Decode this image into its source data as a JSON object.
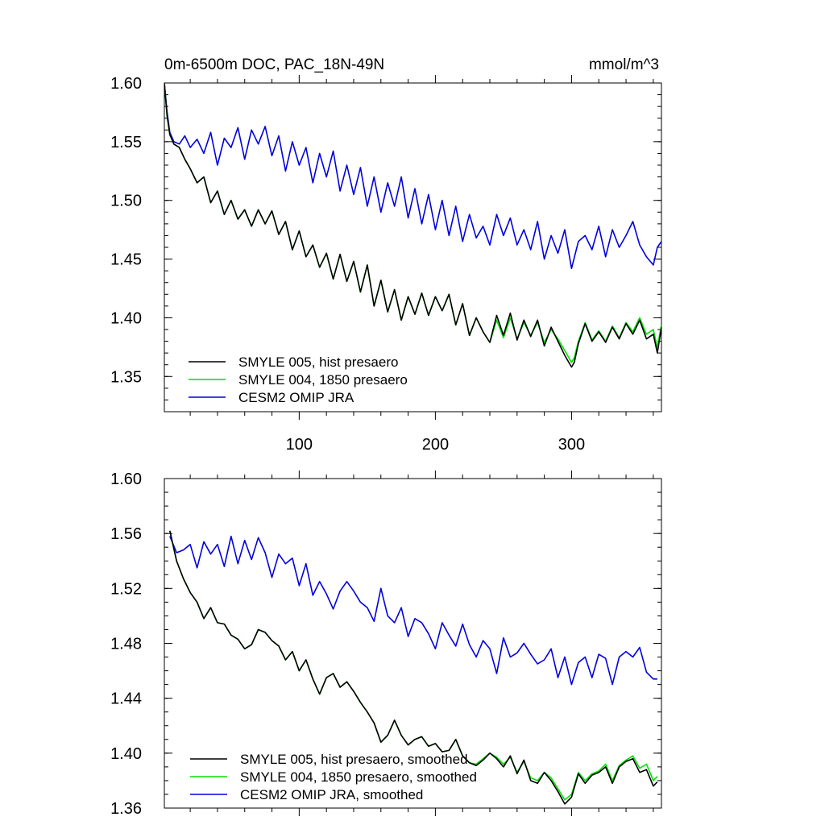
{
  "chart_data": [
    {
      "type": "line",
      "title": "0m-6500m DOC, PAC_18N-49N",
      "units": "mmol/m^3",
      "xlabel": "",
      "ylabel": "",
      "xlim": [
        1,
        366
      ],
      "ylim": [
        1.32,
        1.6
      ],
      "yticks": [
        "1.60",
        "1.55",
        "1.50",
        "1.45",
        "1.40",
        "1.35"
      ],
      "xticks": [
        "100",
        "200",
        "300"
      ],
      "legend_position": "bottom-left",
      "series": [
        {
          "name": "SMYLE 005, hist presaero",
          "color": "#000000",
          "x": [
            1,
            3,
            5,
            8,
            12,
            16,
            20,
            25,
            30,
            35,
            40,
            45,
            50,
            55,
            60,
            65,
            70,
            75,
            80,
            85,
            90,
            95,
            100,
            105,
            110,
            115,
            120,
            125,
            130,
            135,
            140,
            145,
            150,
            155,
            160,
            165,
            170,
            175,
            180,
            185,
            190,
            195,
            200,
            205,
            210,
            215,
            220,
            225,
            230,
            235,
            240,
            245,
            250,
            255,
            260,
            265,
            270,
            275,
            280,
            285,
            290,
            295,
            300,
            302,
            305,
            310,
            315,
            320,
            325,
            330,
            335,
            340,
            345,
            350,
            355,
            360,
            363,
            366
          ],
          "values": [
            1.6,
            1.572,
            1.556,
            1.548,
            1.545,
            1.535,
            1.527,
            1.515,
            1.52,
            1.498,
            1.508,
            1.488,
            1.5,
            1.484,
            1.492,
            1.478,
            1.492,
            1.48,
            1.491,
            1.471,
            1.482,
            1.458,
            1.474,
            1.452,
            1.462,
            1.443,
            1.455,
            1.433,
            1.454,
            1.431,
            1.448,
            1.422,
            1.445,
            1.41,
            1.432,
            1.405,
            1.424,
            1.398,
            1.418,
            1.403,
            1.421,
            1.402,
            1.418,
            1.406,
            1.42,
            1.394,
            1.412,
            1.385,
            1.4,
            1.388,
            1.379,
            1.402,
            1.385,
            1.404,
            1.381,
            1.398,
            1.384,
            1.398,
            1.376,
            1.392,
            1.38,
            1.368,
            1.358,
            1.362,
            1.378,
            1.395,
            1.38,
            1.388,
            1.379,
            1.392,
            1.382,
            1.395,
            1.386,
            1.398,
            1.382,
            1.386,
            1.37,
            1.392
          ]
        },
        {
          "name": "SMYLE 004, 1850 presaero",
          "color": "#00e000",
          "x": [
            1,
            3,
            5,
            8,
            12,
            16,
            20,
            25,
            30,
            35,
            40,
            45,
            50,
            55,
            60,
            65,
            70,
            75,
            80,
            85,
            90,
            95,
            100,
            105,
            110,
            115,
            120,
            125,
            130,
            135,
            140,
            145,
            150,
            155,
            160,
            165,
            170,
            175,
            180,
            185,
            190,
            195,
            200,
            205,
            210,
            215,
            220,
            225,
            230,
            235,
            240,
            245,
            250,
            255,
            260,
            265,
            270,
            275,
            280,
            285,
            290,
            295,
            300,
            302,
            305,
            310,
            315,
            320,
            325,
            330,
            335,
            340,
            345,
            350,
            355,
            360,
            363,
            366
          ],
          "values": [
            1.6,
            1.572,
            1.556,
            1.548,
            1.545,
            1.535,
            1.527,
            1.515,
            1.52,
            1.498,
            1.508,
            1.488,
            1.5,
            1.484,
            1.492,
            1.478,
            1.492,
            1.48,
            1.491,
            1.471,
            1.482,
            1.458,
            1.474,
            1.452,
            1.462,
            1.443,
            1.455,
            1.433,
            1.454,
            1.431,
            1.448,
            1.422,
            1.445,
            1.41,
            1.432,
            1.405,
            1.424,
            1.398,
            1.418,
            1.403,
            1.421,
            1.402,
            1.418,
            1.406,
            1.42,
            1.394,
            1.412,
            1.385,
            1.4,
            1.388,
            1.379,
            1.398,
            1.383,
            1.4,
            1.382,
            1.396,
            1.385,
            1.396,
            1.379,
            1.39,
            1.382,
            1.372,
            1.362,
            1.366,
            1.38,
            1.396,
            1.381,
            1.389,
            1.38,
            1.393,
            1.383,
            1.396,
            1.388,
            1.4,
            1.386,
            1.39,
            1.375,
            1.394
          ]
        },
        {
          "name": "CESM2 OMIP JRA",
          "color": "#0000dd",
          "x": [
            1,
            3,
            5,
            8,
            12,
            16,
            20,
            25,
            30,
            35,
            40,
            45,
            50,
            55,
            60,
            65,
            70,
            75,
            80,
            85,
            90,
            95,
            100,
            105,
            110,
            115,
            120,
            125,
            130,
            135,
            140,
            145,
            150,
            155,
            160,
            165,
            170,
            175,
            180,
            185,
            190,
            195,
            200,
            205,
            210,
            215,
            220,
            225,
            230,
            235,
            240,
            245,
            250,
            255,
            260,
            265,
            270,
            275,
            280,
            285,
            290,
            295,
            300,
            305,
            310,
            315,
            320,
            325,
            330,
            335,
            340,
            345,
            350,
            355,
            360,
            363,
            366
          ],
          "values": [
            1.6,
            1.575,
            1.558,
            1.55,
            1.548,
            1.555,
            1.545,
            1.552,
            1.54,
            1.558,
            1.53,
            1.553,
            1.545,
            1.562,
            1.535,
            1.56,
            1.548,
            1.563,
            1.538,
            1.555,
            1.525,
            1.55,
            1.53,
            1.545,
            1.515,
            1.54,
            1.52,
            1.542,
            1.508,
            1.53,
            1.505,
            1.528,
            1.495,
            1.52,
            1.49,
            1.515,
            1.495,
            1.52,
            1.485,
            1.51,
            1.48,
            1.505,
            1.475,
            1.5,
            1.47,
            1.495,
            1.465,
            1.488,
            1.468,
            1.478,
            1.462,
            1.488,
            1.47,
            1.485,
            1.462,
            1.475,
            1.458,
            1.482,
            1.45,
            1.47,
            1.455,
            1.475,
            1.442,
            1.465,
            1.47,
            1.458,
            1.478,
            1.452,
            1.475,
            1.46,
            1.47,
            1.482,
            1.462,
            1.452,
            1.445,
            1.46,
            1.465
          ]
        }
      ]
    },
    {
      "type": "line",
      "title": "",
      "xlabel": "",
      "ylabel": "",
      "xlim": [
        1,
        366
      ],
      "ylim": [
        1.36,
        1.6
      ],
      "yticks": [
        "1.60",
        "1.56",
        "1.52",
        "1.48",
        "1.44",
        "1.40",
        "1.36"
      ],
      "legend_position": "bottom-left",
      "series": [
        {
          "name": "SMYLE 005, hist presaero, smoothed",
          "color": "#000000",
          "x": [
            5,
            10,
            15,
            20,
            25,
            30,
            35,
            40,
            45,
            50,
            55,
            60,
            65,
            70,
            75,
            80,
            85,
            90,
            95,
            100,
            105,
            110,
            115,
            120,
            125,
            130,
            135,
            140,
            145,
            150,
            155,
            160,
            165,
            170,
            175,
            180,
            185,
            190,
            195,
            200,
            205,
            210,
            215,
            220,
            225,
            230,
            235,
            240,
            245,
            250,
            255,
            260,
            265,
            270,
            275,
            280,
            285,
            290,
            295,
            300,
            305,
            310,
            315,
            320,
            325,
            330,
            335,
            340,
            345,
            350,
            355,
            360,
            363
          ],
          "values": [
            1.562,
            1.54,
            1.527,
            1.517,
            1.51,
            1.498,
            1.506,
            1.495,
            1.494,
            1.486,
            1.483,
            1.476,
            1.479,
            1.49,
            1.488,
            1.482,
            1.478,
            1.468,
            1.474,
            1.46,
            1.468,
            1.454,
            1.443,
            1.455,
            1.458,
            1.448,
            1.452,
            1.445,
            1.437,
            1.43,
            1.422,
            1.408,
            1.413,
            1.424,
            1.413,
            1.406,
            1.41,
            1.412,
            1.405,
            1.407,
            1.401,
            1.402,
            1.41,
            1.398,
            1.393,
            1.391,
            1.395,
            1.4,
            1.396,
            1.39,
            1.398,
            1.385,
            1.395,
            1.38,
            1.378,
            1.386,
            1.38,
            1.372,
            1.363,
            1.368,
            1.385,
            1.378,
            1.384,
            1.386,
            1.39,
            1.378,
            1.39,
            1.394,
            1.396,
            1.386,
            1.388,
            1.376,
            1.379
          ]
        },
        {
          "name": "SMYLE 004, 1850 presaero, smoothed",
          "color": "#00e000",
          "x": [
            5,
            10,
            15,
            20,
            25,
            30,
            35,
            40,
            45,
            50,
            55,
            60,
            65,
            70,
            75,
            80,
            85,
            90,
            95,
            100,
            105,
            110,
            115,
            120,
            125,
            130,
            135,
            140,
            145,
            150,
            155,
            160,
            165,
            170,
            175,
            180,
            185,
            190,
            195,
            200,
            205,
            210,
            215,
            220,
            225,
            230,
            235,
            240,
            245,
            250,
            255,
            260,
            265,
            270,
            275,
            280,
            285,
            290,
            295,
            300,
            305,
            310,
            315,
            320,
            325,
            330,
            335,
            340,
            345,
            350,
            355,
            360,
            363
          ],
          "values": [
            1.562,
            1.54,
            1.527,
            1.517,
            1.51,
            1.498,
            1.506,
            1.495,
            1.494,
            1.486,
            1.483,
            1.476,
            1.479,
            1.49,
            1.488,
            1.482,
            1.478,
            1.468,
            1.474,
            1.46,
            1.468,
            1.454,
            1.443,
            1.455,
            1.458,
            1.448,
            1.452,
            1.445,
            1.437,
            1.43,
            1.422,
            1.408,
            1.413,
            1.424,
            1.413,
            1.406,
            1.41,
            1.412,
            1.405,
            1.407,
            1.401,
            1.402,
            1.41,
            1.398,
            1.393,
            1.392,
            1.396,
            1.4,
            1.397,
            1.392,
            1.397,
            1.386,
            1.394,
            1.382,
            1.38,
            1.386,
            1.382,
            1.374,
            1.366,
            1.37,
            1.386,
            1.38,
            1.385,
            1.387,
            1.392,
            1.38,
            1.391,
            1.395,
            1.398,
            1.389,
            1.392,
            1.38,
            1.383
          ]
        },
        {
          "name": "CESM2 OMIP JRA, smoothed",
          "color": "#0000dd",
          "x": [
            5,
            10,
            15,
            20,
            25,
            30,
            35,
            40,
            45,
            50,
            55,
            60,
            65,
            70,
            75,
            80,
            85,
            90,
            95,
            100,
            105,
            110,
            115,
            120,
            125,
            130,
            135,
            140,
            145,
            150,
            155,
            160,
            165,
            170,
            175,
            180,
            185,
            190,
            195,
            200,
            205,
            210,
            215,
            220,
            225,
            230,
            235,
            240,
            245,
            250,
            255,
            260,
            265,
            270,
            275,
            280,
            285,
            290,
            295,
            300,
            305,
            310,
            315,
            320,
            325,
            330,
            335,
            340,
            345,
            350,
            355,
            360,
            363
          ],
          "values": [
            1.558,
            1.546,
            1.548,
            1.552,
            1.535,
            1.554,
            1.545,
            1.552,
            1.536,
            1.558,
            1.538,
            1.555,
            1.541,
            1.557,
            1.546,
            1.528,
            1.545,
            1.538,
            1.542,
            1.522,
            1.538,
            1.515,
            1.525,
            1.516,
            1.505,
            1.518,
            1.525,
            1.518,
            1.51,
            1.506,
            1.496,
            1.52,
            1.5,
            1.495,
            1.506,
            1.485,
            1.498,
            1.495,
            1.487,
            1.476,
            1.495,
            1.486,
            1.478,
            1.494,
            1.479,
            1.47,
            1.482,
            1.476,
            1.458,
            1.484,
            1.47,
            1.473,
            1.48,
            1.472,
            1.465,
            1.468,
            1.476,
            1.455,
            1.47,
            1.45,
            1.466,
            1.47,
            1.455,
            1.472,
            1.469,
            1.45,
            1.47,
            1.474,
            1.47,
            1.477,
            1.459,
            1.454,
            1.454
          ]
        }
      ]
    }
  ]
}
